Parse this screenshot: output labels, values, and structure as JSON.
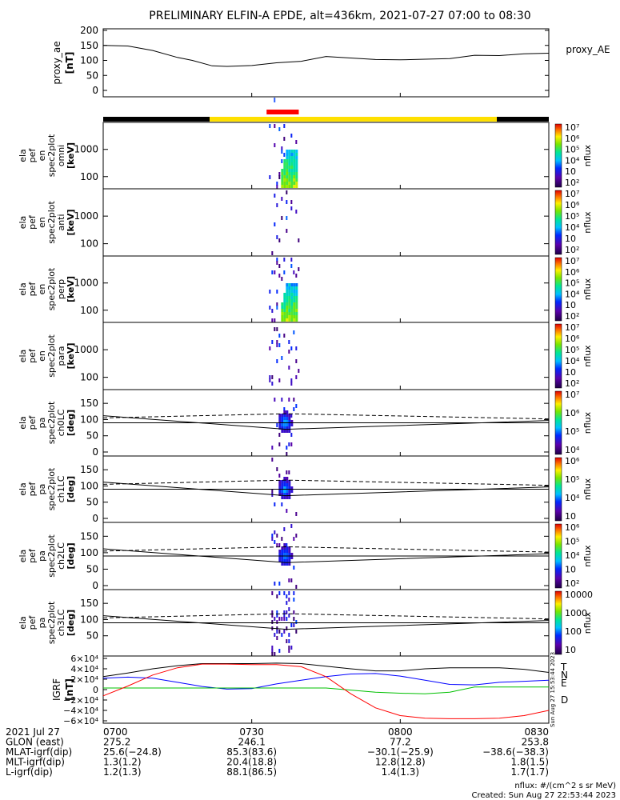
{
  "title": "PRELIMINARY ELFIN-A EPDE, alt=436km, 2021-07-27 07:00 to 08:30",
  "time_axis": {
    "ticks": [
      "0700",
      "0730",
      "0800",
      "0830"
    ],
    "start_min": 0,
    "end_min": 90
  },
  "proxy_ae": {
    "ylabel": "proxy_ae",
    "yunit": "[nT]",
    "legend": "proxy_AE",
    "yticks": [
      "200",
      "150",
      "100",
      "50",
      "0"
    ],
    "ylim": [
      0,
      200
    ],
    "t": [
      0,
      5,
      10,
      15,
      18,
      22,
      25,
      30,
      35,
      40,
      45,
      50,
      55,
      60,
      65,
      70,
      75,
      80,
      85,
      90
    ],
    "v": [
      150,
      148,
      133,
      110,
      100,
      82,
      80,
      83,
      92,
      97,
      113,
      108,
      103,
      102,
      104,
      106,
      117,
      116,
      122,
      124
    ]
  },
  "status_bars": {
    "black_left_end_min": 21.5,
    "yellow_end_min": 79.5,
    "science_start_min": 33,
    "science_end_min": 39.5
  },
  "spec_panels": [
    {
      "id": "energy-omni",
      "labels": [
        "ela",
        "pef",
        "en",
        "spec2plot",
        "omni"
      ],
      "unit": "[keV]",
      "yticks": [
        "1000",
        "100"
      ],
      "cbar_ticks": [
        "10⁷",
        "10⁶",
        "10⁵",
        "10⁴",
        "10⁳",
        "10²"
      ],
      "cbar_label": "nflux"
    },
    {
      "id": "energy-anti",
      "labels": [
        "ela",
        "pef",
        "en",
        "spec2plot",
        "anti"
      ],
      "unit": "[keV]",
      "yticks": [
        "1000",
        "100"
      ],
      "cbar_ticks": [
        "10⁷",
        "10⁶",
        "10⁵",
        "10⁴",
        "10⁳",
        "10²"
      ],
      "cbar_label": "nflux"
    },
    {
      "id": "energy-perp",
      "labels": [
        "ela",
        "pef",
        "en",
        "spec2plot",
        "perp"
      ],
      "unit": "[keV]",
      "yticks": [
        "1000",
        "100"
      ],
      "cbar_ticks": [
        "10⁷",
        "10⁶",
        "10⁵",
        "10⁴",
        "10⁳",
        "10²"
      ],
      "cbar_label": "nflux"
    },
    {
      "id": "energy-para",
      "labels": [
        "ela",
        "pef",
        "en",
        "spec2plot",
        "para"
      ],
      "unit": "[keV]",
      "yticks": [
        "1000",
        "100"
      ],
      "cbar_ticks": [
        "10⁷",
        "10⁶",
        "10⁵",
        "10⁴",
        "10⁳",
        "10²"
      ],
      "cbar_label": "nflux"
    },
    {
      "id": "pa-ch0",
      "labels": [
        "ela",
        "pef",
        "pa",
        "spec2plot",
        "ch0LC"
      ],
      "unit": "[deg]",
      "yticks": [
        "150",
        "100",
        "50",
        "0"
      ],
      "cbar_ticks": [
        "10⁷",
        "10⁶",
        "10⁵",
        "10⁴"
      ],
      "cbar_label": "nflux"
    },
    {
      "id": "pa-ch1",
      "labels": [
        "ela",
        "pef",
        "pa",
        "spec2plot",
        "ch1LC"
      ],
      "unit": "[deg]",
      "yticks": [
        "150",
        "100",
        "50",
        "0"
      ],
      "cbar_ticks": [
        "10⁶",
        "10⁵",
        "10⁴",
        "10⁳"
      ],
      "cbar_label": "nflux"
    },
    {
      "id": "pa-ch2",
      "labels": [
        "ela",
        "pef",
        "pa",
        "spec2plot",
        "ch2LC"
      ],
      "unit": "[deg]",
      "yticks": [
        "150",
        "100",
        "50",
        "0"
      ],
      "cbar_ticks": [
        "10⁶",
        "10⁵",
        "10⁴",
        "10⁳",
        "10²"
      ],
      "cbar_label": "nflux"
    },
    {
      "id": "pa-ch3",
      "labels": [
        "ela",
        "pef",
        "pa",
        "spec2plot",
        "ch3LC"
      ],
      "unit": "[deg]",
      "yticks": [
        "150",
        "100",
        "50"
      ],
      "cbar_ticks": [
        "10000",
        "1000",
        "100",
        "10"
      ],
      "cbar_label": "nflux"
    }
  ],
  "igrf": {
    "ylabel": "IGRF",
    "yunit": "[nT]",
    "yticks": [
      "6×10⁴",
      "4×10⁴",
      "2×10⁴",
      "0",
      "−2×10⁴",
      "−4×10⁴",
      "−6×10⁴"
    ],
    "legend": [
      "T",
      "N",
      "E",
      "D"
    ],
    "side_note": "Sun Aug 27 15:53:44 2023"
  },
  "footer_rows": [
    {
      "label": "2021 Jul 27",
      "values": [
        "0700",
        "0730",
        "0800",
        "0830"
      ]
    },
    {
      "label": "GLON (east)",
      "values": [
        "275.2",
        "246.1",
        "77.2",
        "253.8"
      ]
    },
    {
      "label": "MLAT-igrf(dip)",
      "values": [
        "25.6(−24.8)",
        "85.3(83.6)",
        "−30.1(−25.9)",
        "−38.6(−38.3)"
      ]
    },
    {
      "label": "MLT-igrf(dip)",
      "values": [
        "1.3(1.2)",
        "20.4(18.8)",
        "12.8(12.8)",
        "1.8(1.5)"
      ]
    },
    {
      "label": "L-igrf(dip)",
      "values": [
        "1.2(1.3)",
        "88.1(86.5)",
        "1.4(1.3)",
        "1.7(1.7)"
      ]
    }
  ],
  "notes": {
    "flux_unit": "nflux: #/(cm^2 s sr MeV)",
    "created": "Created: Sun Aug 27 22:53:44 2023"
  },
  "colors": {
    "trace_T": "#000000",
    "trace_N": "#0000ff",
    "trace_E": "#00c000",
    "trace_D": "#ff0000",
    "science_bar": "#ff0000",
    "status_yellow": "#ffe000"
  },
  "chart_data": [
    {
      "type": "line",
      "title": "PRELIMINARY ELFIN-A EPDE, alt=436km, 2021-07-27 07:00 to 08:30",
      "ylabel": "proxy_ae [nT]",
      "ylim": [
        0,
        200
      ],
      "x": [
        0,
        5,
        10,
        15,
        18,
        22,
        25,
        30,
        35,
        40,
        45,
        50,
        55,
        60,
        65,
        70,
        75,
        80,
        85,
        90
      ],
      "series": [
        {
          "name": "proxy_AE",
          "values": [
            150,
            148,
            133,
            110,
            100,
            82,
            80,
            83,
            92,
            97,
            113,
            108,
            103,
            102,
            104,
            106,
            117,
            116,
            122,
            124
          ]
        }
      ]
    },
    {
      "type": "heatmap",
      "ylabel": "ela pef en spec2plot omni [keV]",
      "clabel": "nflux",
      "clim_log10": [
        2,
        7
      ],
      "x_range_min": [
        33,
        40
      ],
      "ylim": [
        50,
        7000
      ]
    },
    {
      "type": "heatmap",
      "ylabel": "ela pef en spec2plot anti [keV]",
      "clabel": "nflux",
      "clim_log10": [
        2,
        7
      ],
      "x_range_min": [
        33,
        40
      ],
      "ylim": [
        50,
        7000
      ]
    },
    {
      "type": "heatmap",
      "ylabel": "ela pef en spec2plot perp [keV]",
      "clabel": "nflux",
      "clim_log10": [
        2,
        7
      ],
      "x_range_min": [
        33,
        40
      ],
      "ylim": [
        50,
        7000
      ]
    },
    {
      "type": "heatmap",
      "ylabel": "ela pef en spec2plot para [keV]",
      "clabel": "nflux",
      "clim_log10": [
        2,
        7
      ],
      "x_range_min": [
        33,
        40
      ],
      "ylim": [
        50,
        7000
      ]
    },
    {
      "type": "heatmap",
      "ylabel": "ela pef pa spec2plot ch0LC [deg]",
      "clabel": "nflux",
      "clim_log10": [
        3.5,
        7
      ],
      "ylim": [
        0,
        180
      ]
    },
    {
      "type": "heatmap",
      "ylabel": "ela pef pa spec2plot ch1LC [deg]",
      "clabel": "nflux",
      "clim_log10": [
        2.5,
        6.5
      ],
      "ylim": [
        0,
        180
      ]
    },
    {
      "type": "heatmap",
      "ylabel": "ela pef pa spec2plot ch2LC [deg]",
      "clabel": "nflux",
      "clim_log10": [
        2,
        6.5
      ],
      "ylim": [
        0,
        180
      ]
    },
    {
      "type": "heatmap",
      "ylabel": "ela pef pa spec2plot ch3LC [deg]",
      "clabel": "nflux",
      "clim_log10": [
        1,
        4.2
      ],
      "ylim": [
        0,
        180
      ]
    },
    {
      "type": "line",
      "ylabel": "IGRF [nT]",
      "ylim": [
        -60000,
        60000
      ],
      "x": [
        0,
        5,
        10,
        15,
        20,
        25,
        30,
        35,
        40,
        45,
        50,
        55,
        60,
        65,
        70,
        75,
        80,
        85,
        90
      ],
      "series": [
        {
          "name": "T",
          "values": [
            25000,
            32000,
            40000,
            46000,
            50000,
            50000,
            50000,
            51000,
            50000,
            45000,
            40000,
            36000,
            36000,
            40000,
            42000,
            42000,
            42000,
            39000,
            33000
          ]
        },
        {
          "name": "N",
          "values": [
            22000,
            24000,
            22000,
            14000,
            6000,
            1000,
            2000,
            11000,
            18000,
            25000,
            30000,
            31000,
            26000,
            18000,
            10000,
            9000,
            14000,
            16000,
            18000
          ]
        },
        {
          "name": "E",
          "values": [
            3000,
            3000,
            3000,
            3000,
            3000,
            3000,
            3000,
            3000,
            3000,
            3000,
            -1000,
            -5000,
            -7000,
            -8000,
            -5000,
            5000,
            5000,
            5000,
            5000
          ]
        },
        {
          "name": "D",
          "values": [
            -12000,
            7000,
            28000,
            42000,
            49000,
            49000,
            48000,
            48000,
            44000,
            25000,
            -8000,
            -35000,
            -50000,
            -55000,
            -56000,
            -56000,
            -55000,
            -50000,
            -40000
          ]
        }
      ]
    }
  ]
}
